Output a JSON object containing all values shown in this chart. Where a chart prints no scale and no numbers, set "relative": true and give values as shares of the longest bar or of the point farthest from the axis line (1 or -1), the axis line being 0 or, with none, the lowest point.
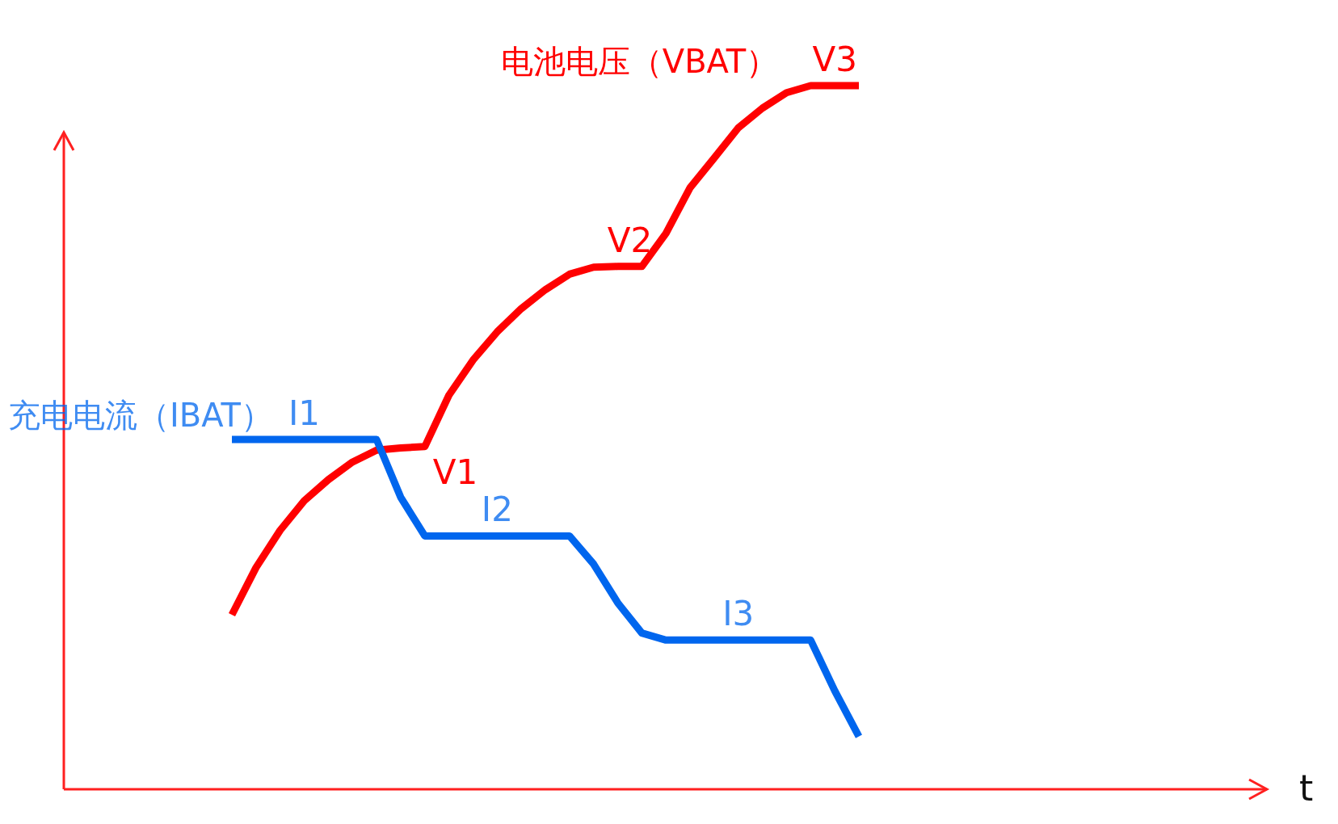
{
  "chart_data": {
    "type": "line",
    "relative": true,
    "marker": "none",
    "line_style": "solid",
    "categories": [
      null,
      null,
      null,
      null,
      null,
      null,
      null,
      null,
      null,
      null,
      null,
      null,
      null,
      null,
      null,
      null,
      null,
      null,
      null,
      null,
      null,
      null,
      null,
      null,
      null,
      null,
      null
    ],
    "series": [
      {
        "name": "电池电压（VBAT）",
        "color": "#ff0000",
        "values": [
          0.248,
          0.315,
          0.368,
          0.41,
          0.44,
          0.465,
          0.482,
          0.485,
          0.487,
          0.56,
          0.61,
          0.65,
          0.683,
          0.71,
          0.732,
          0.742,
          0.743,
          0.743,
          0.79,
          0.855,
          0.897,
          0.94,
          0.968,
          0.99,
          1,
          1,
          1
        ]
      },
      {
        "name": "充电电流（IBAT）",
        "color": "#0066ee",
        "values": [
          0.497,
          0.497,
          0.497,
          0.497,
          0.497,
          0.497,
          0.497,
          0.415,
          0.36,
          0.36,
          0.36,
          0.36,
          0.36,
          0.36,
          0.36,
          0.32,
          0.265,
          0.222,
          0.212,
          0.212,
          0.212,
          0.212,
          0.212,
          0.212,
          0.212,
          0.14,
          0.075
        ]
      }
    ],
    "annotations": [
      "V1",
      {
        "text": "V2",
        "y": 0.743
      },
      {
        "text": "V3",
        "y": 1
      },
      {
        "text": "I1",
        "y": 0.497
      },
      {
        "text": "I2",
        "y": 0.36
      },
      {
        "text": "I3",
        "y": 0.212
      },
      "t"
    ]
  }
}
